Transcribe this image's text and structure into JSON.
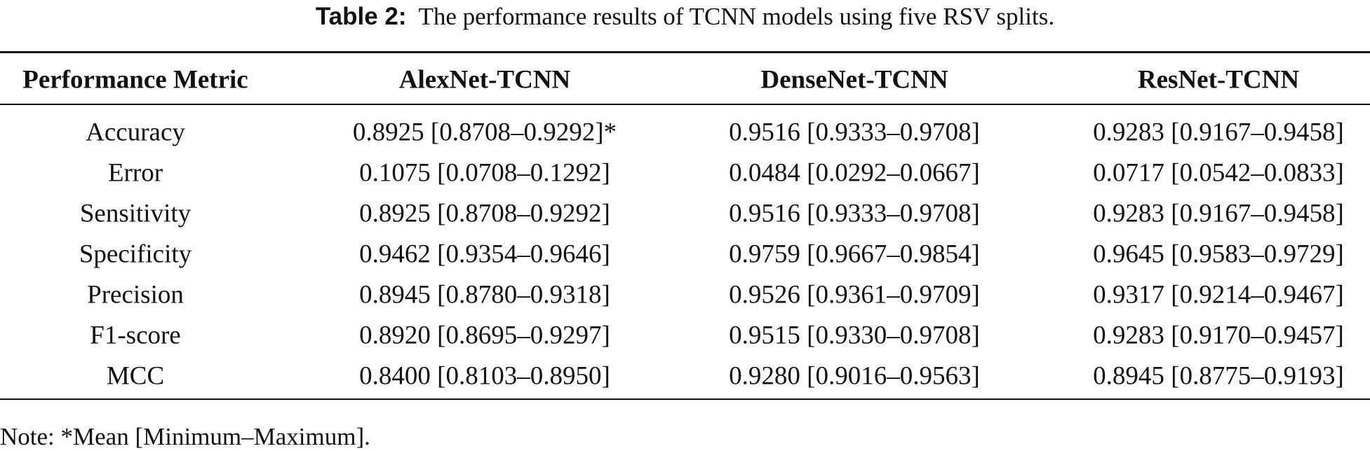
{
  "caption": {
    "label": "Table 2:",
    "text": "The performance results of TCNN models using five RSV splits."
  },
  "table": {
    "header": [
      "Performance Metric",
      "AlexNet-TCNN",
      "DenseNet-TCNN",
      "ResNet-TCNN"
    ],
    "rows": [
      [
        "Accuracy",
        "0.8925 [0.8708–0.9292]*",
        "0.9516 [0.9333–0.9708]",
        "0.9283 [0.9167–0.9458]"
      ],
      [
        "Error",
        "0.1075 [0.0708–0.1292]",
        "0.0484 [0.0292–0.0667]",
        "0.0717 [0.0542–0.0833]"
      ],
      [
        "Sensitivity",
        "0.8925 [0.8708–0.9292]",
        "0.9516 [0.9333–0.9708]",
        "0.9283 [0.9167–0.9458]"
      ],
      [
        "Specificity",
        "0.9462 [0.9354–0.9646]",
        "0.9759 [0.9667–0.9854]",
        "0.9645 [0.9583–0.9729]"
      ],
      [
        "Precision",
        "0.8945 [0.8780–0.9318]",
        "0.9526 [0.9361–0.9709]",
        "0.9317 [0.9214–0.9467]"
      ],
      [
        "F1-score",
        "0.8920 [0.8695–0.9297]",
        "0.9515 [0.9330–0.9708]",
        "0.9283 [0.9170–0.9457]"
      ],
      [
        "MCC",
        "0.8400 [0.8103–0.8950]",
        "0.9280 [0.9016–0.9563]",
        "0.8945 [0.8775–0.9193]"
      ]
    ]
  },
  "note": "Note: *Mean [Minimum–Maximum]."
}
